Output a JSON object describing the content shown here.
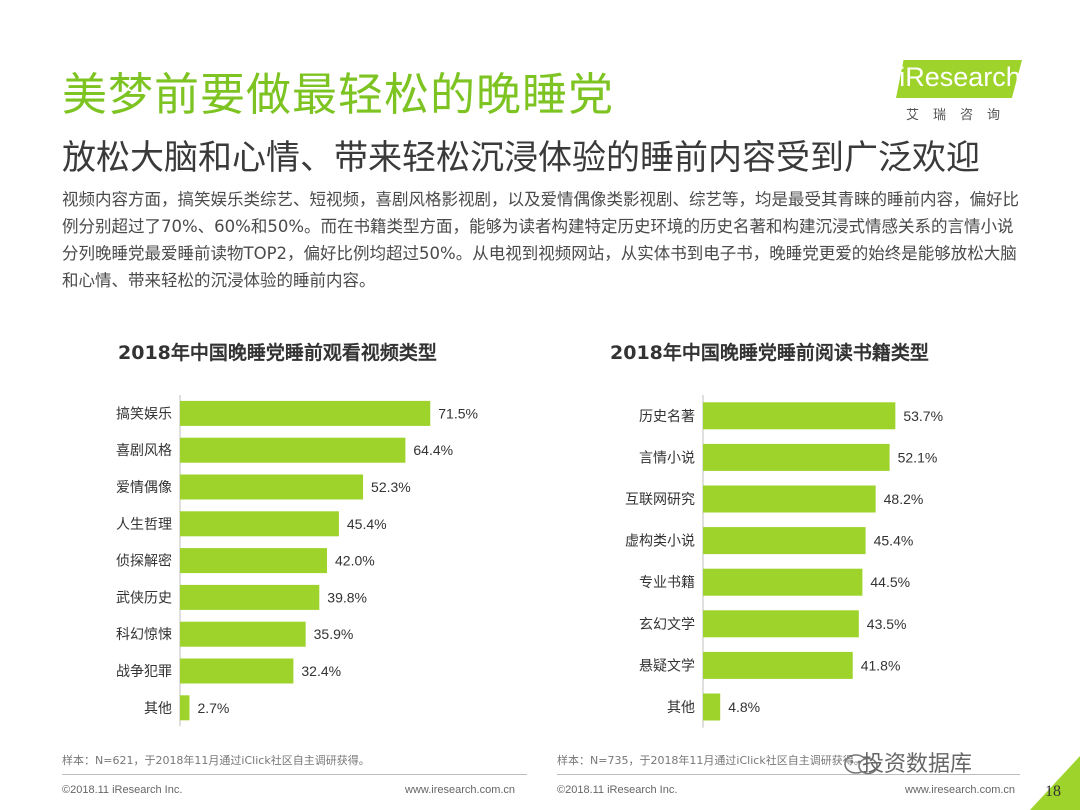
{
  "page": {
    "title": "美梦前要做最轻松的晚睡党",
    "subtitle": "放松大脑和心情、带来轻松沉浸体验的睡前内容受到广泛欢迎",
    "body": "视频内容方面，搞笑娱乐类综艺、短视频，喜剧风格影视剧，以及爱情偶像类影视剧、综艺等，均是最受其青睐的睡前内容，偏好比例分别超过了70%、60%和50%。而在书籍类型方面，能够为读者构建特定历史环境的历史名著和构建沉浸式情感关系的言情小说分列晚睡党最爱睡前读物TOP2，偏好比例均超过50%。从电视到视频网站，从实体书到电子书，晚睡党更爱的始终是能够放松大脑和心情、带来轻松的沉浸体验的睡前内容。",
    "logo_text": "iResearch",
    "logo_cn": "艾瑞咨询",
    "page_number": "18",
    "watermark": "投资数据库",
    "accent_color": "#9dd32a",
    "title_color": "#7dc422"
  },
  "notes": {
    "left": "样本：N=621，于2018年11月通过iClick社区自主调研获得。",
    "right": "样本：N=735，于2018年11月通过iClick社区自主调研获得。"
  },
  "footer": {
    "copyright_left": "©2018.11 iResearch Inc.",
    "url_left": "www.iresearch.com.cn",
    "copyright_right": "©2018.11 iResearch Inc.",
    "url_right": "www.iresearch.com.cn"
  },
  "chart_data": [
    {
      "type": "bar",
      "orientation": "horizontal",
      "title": "2018年中国晚睡党睡前观看视频类型",
      "categories": [
        "搞笑娱乐",
        "喜剧风格",
        "爱情偶像",
        "人生哲理",
        "侦探解密",
        "武侠历史",
        "科幻惊悚",
        "战争犯罪",
        "其他"
      ],
      "values": [
        71.5,
        64.4,
        52.3,
        45.4,
        42.0,
        39.8,
        35.9,
        32.4,
        2.7
      ],
      "value_labels": [
        "71.5%",
        "64.4%",
        "52.3%",
        "45.4%",
        "42.0%",
        "39.8%",
        "35.9%",
        "32.4%",
        "2.7%"
      ],
      "unit": "%",
      "xlim": [
        0,
        80
      ],
      "bar_color": "#9dd32a",
      "grid": false
    },
    {
      "type": "bar",
      "orientation": "horizontal",
      "title": "2018年中国晚睡党睡前阅读书籍类型",
      "categories": [
        "历史名著",
        "言情小说",
        "互联网研究",
        "虚构类小说",
        "专业书籍",
        "玄幻文学",
        "悬疑文学",
        "其他"
      ],
      "values": [
        53.7,
        52.1,
        48.2,
        45.4,
        44.5,
        43.5,
        41.8,
        4.8
      ],
      "value_labels": [
        "53.7%",
        "52.1%",
        "48.2%",
        "45.4%",
        "44.5%",
        "43.5%",
        "41.8%",
        "4.8%"
      ],
      "unit": "%",
      "xlim": [
        0,
        55
      ],
      "bar_color": "#9dd32a",
      "grid": false
    }
  ]
}
